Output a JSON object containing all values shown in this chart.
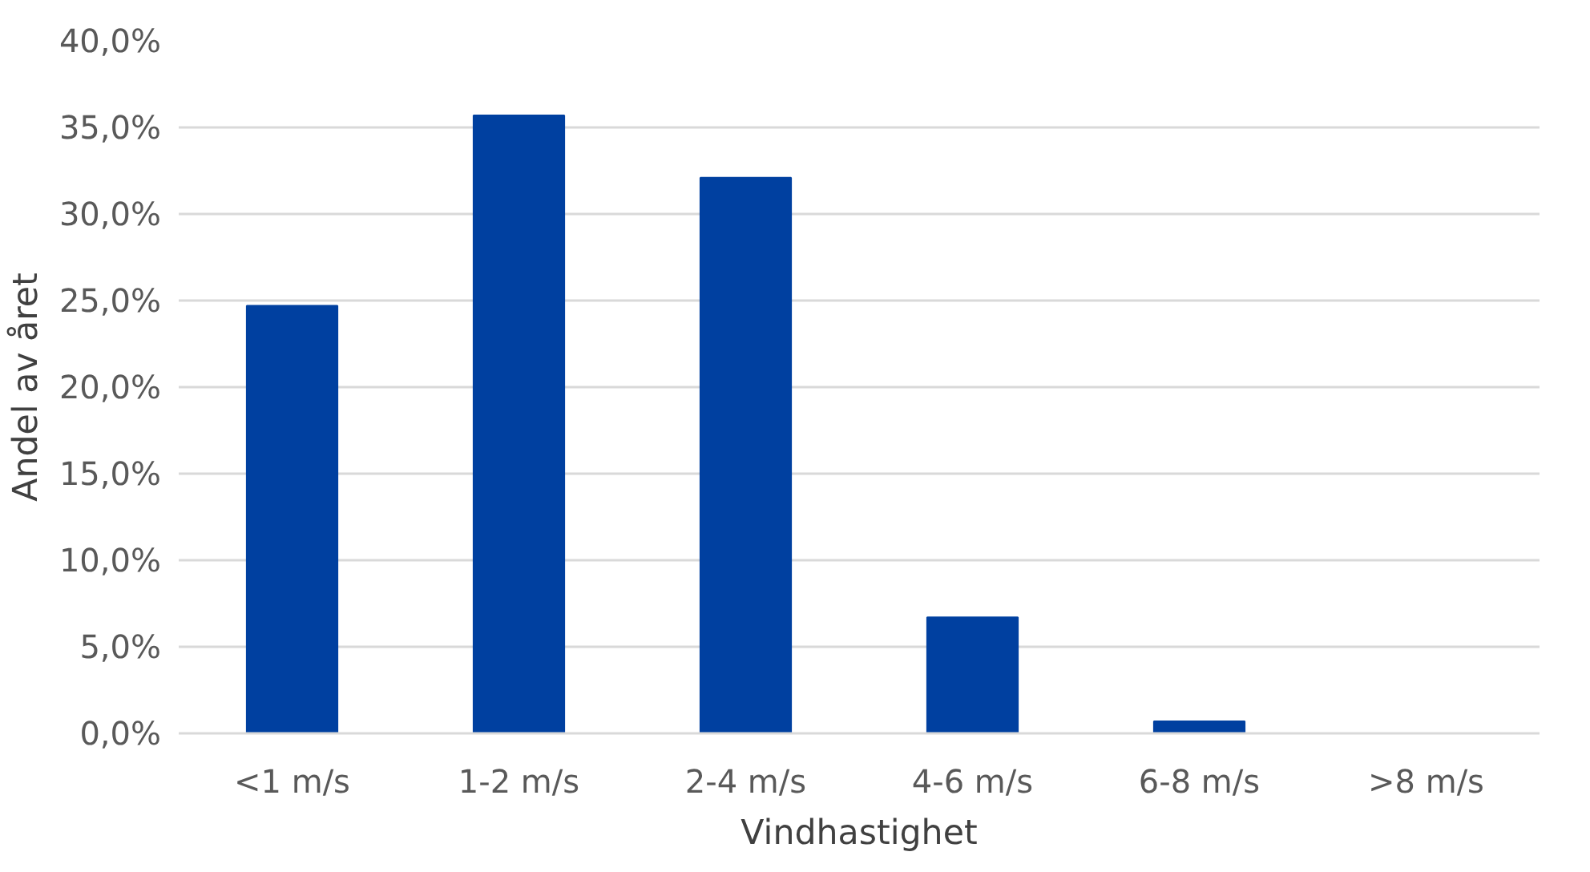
{
  "chart_data": {
    "type": "bar",
    "xlabel": "Vindhastighet",
    "ylabel": "Andel av året",
    "categories": [
      "<1 m/s",
      "1-2 m/s",
      "2-4 m/s",
      "4-6 m/s",
      "6-8 m/s",
      ">8 m/s"
    ],
    "values": [
      24.7,
      35.7,
      32.1,
      6.7,
      0.7,
      0.0
    ],
    "color": "#0040a0",
    "ylim": [
      0,
      40
    ],
    "yticks": [
      {
        "value": 0,
        "label": "0,0%"
      },
      {
        "value": 5,
        "label": "5,0%"
      },
      {
        "value": 10,
        "label": "10,0%"
      },
      {
        "value": 15,
        "label": "15,0%"
      },
      {
        "value": 20,
        "label": "20,0%"
      },
      {
        "value": 25,
        "label": "25,0%"
      },
      {
        "value": 30,
        "label": "30,0%"
      },
      {
        "value": 35,
        "label": "35,0%"
      },
      {
        "value": 40,
        "label": "40,0%"
      }
    ],
    "grid": "y"
  }
}
